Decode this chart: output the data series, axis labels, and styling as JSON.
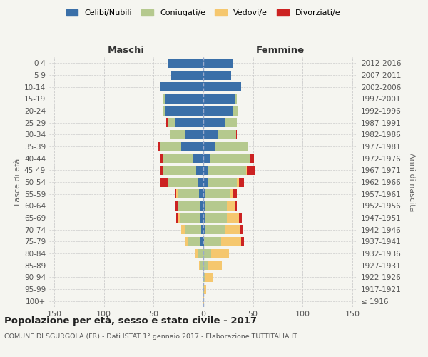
{
  "age_groups": [
    "100+",
    "95-99",
    "90-94",
    "85-89",
    "80-84",
    "75-79",
    "70-74",
    "65-69",
    "60-64",
    "55-59",
    "50-54",
    "45-49",
    "40-44",
    "35-39",
    "30-34",
    "25-29",
    "20-24",
    "15-19",
    "10-14",
    "5-9",
    "0-4"
  ],
  "birth_years": [
    "≤ 1916",
    "1917-1921",
    "1922-1926",
    "1927-1931",
    "1932-1936",
    "1937-1941",
    "1942-1946",
    "1947-1951",
    "1952-1956",
    "1957-1961",
    "1962-1966",
    "1967-1971",
    "1972-1976",
    "1977-1981",
    "1982-1986",
    "1987-1991",
    "1992-1996",
    "1997-2001",
    "2002-2006",
    "2007-2011",
    "2012-2016"
  ],
  "males_celibi": [
    0,
    0,
    0,
    0,
    0,
    3,
    2,
    3,
    3,
    4,
    5,
    7,
    10,
    22,
    18,
    28,
    38,
    38,
    43,
    32,
    35
  ],
  "males_coniugati": [
    0,
    0,
    1,
    3,
    6,
    12,
    17,
    20,
    22,
    22,
    30,
    33,
    30,
    22,
    15,
    8,
    3,
    2,
    0,
    0,
    0
  ],
  "males_vedovi": [
    0,
    0,
    0,
    1,
    2,
    3,
    3,
    3,
    1,
    1,
    0,
    0,
    0,
    0,
    0,
    0,
    0,
    0,
    0,
    0,
    0
  ],
  "males_divorziati": [
    0,
    0,
    0,
    0,
    0,
    0,
    0,
    1,
    2,
    2,
    8,
    3,
    4,
    1,
    0,
    1,
    0,
    0,
    0,
    0,
    0
  ],
  "females_nubili": [
    0,
    0,
    0,
    0,
    0,
    1,
    2,
    2,
    2,
    2,
    4,
    5,
    7,
    12,
    15,
    22,
    30,
    32,
    38,
    28,
    30
  ],
  "females_coniugate": [
    0,
    1,
    2,
    4,
    8,
    17,
    20,
    22,
    22,
    25,
    30,
    38,
    40,
    33,
    18,
    12,
    5,
    2,
    0,
    0,
    0
  ],
  "females_vedove": [
    1,
    2,
    8,
    15,
    18,
    20,
    15,
    12,
    8,
    3,
    2,
    1,
    0,
    0,
    0,
    0,
    0,
    0,
    0,
    0,
    0
  ],
  "females_divorziate": [
    0,
    0,
    0,
    0,
    0,
    3,
    3,
    3,
    2,
    4,
    5,
    8,
    4,
    0,
    1,
    0,
    0,
    0,
    0,
    0,
    0
  ],
  "color_celibi": "#3a6fa8",
  "color_coniugati": "#b5c98e",
  "color_vedovi": "#f5c76e",
  "color_divorziati": "#cc2222",
  "xlim": 155,
  "title": "Popolazione per età, sesso e stato civile - 2017",
  "subtitle": "COMUNE DI SGURGOLA (FR) - Dati ISTAT 1° gennaio 2017 - Elaborazione TUTTITALIA.IT",
  "label_maschi": "Maschi",
  "label_femmine": "Femmine",
  "ylabel_left": "Fasce di età",
  "ylabel_right": "Anni di nascita",
  "legend_labels": [
    "Celibi/Nubili",
    "Coniugati/e",
    "Vedovi/e",
    "Divorziati/e"
  ],
  "bg_color": "#f5f5f0",
  "grid_color": "#cccccc"
}
